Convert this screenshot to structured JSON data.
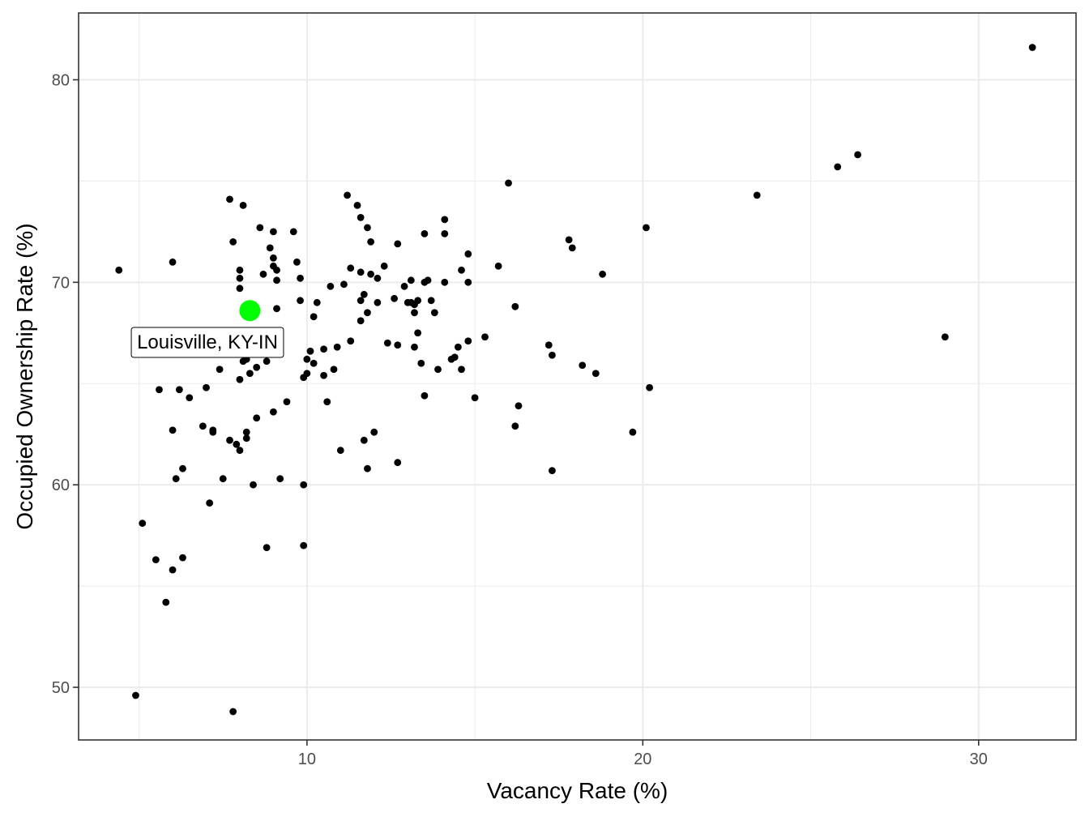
{
  "chart_data": {
    "type": "scatter",
    "title": "",
    "xlabel": "Vacancy Rate (%)",
    "ylabel": "Occupied Ownership Rate (%)",
    "xlim": [
      3.2,
      32.9
    ],
    "ylim": [
      47.4,
      83.3
    ],
    "x_ticks": [
      10,
      20,
      30
    ],
    "y_ticks": [
      50,
      60,
      70,
      80
    ],
    "x_minor": [
      5,
      15,
      25
    ],
    "y_minor": [
      55,
      65,
      75
    ],
    "grid": true,
    "legend": "none",
    "colors": {
      "point": "#000000",
      "highlight": "#00ff00",
      "grid": "#ebebeb",
      "panel_border": "#333333"
    },
    "highlight": {
      "x": 8.3,
      "y": 68.6,
      "label": "Louisville, KY-IN"
    },
    "points": [
      [
        4.4,
        70.6
      ],
      [
        4.9,
        49.6
      ],
      [
        5.1,
        58.1
      ],
      [
        5.5,
        56.3
      ],
      [
        5.6,
        64.7
      ],
      [
        5.8,
        54.2
      ],
      [
        6.0,
        71.0
      ],
      [
        6.0,
        62.7
      ],
      [
        6.0,
        55.8
      ],
      [
        6.1,
        60.3
      ],
      [
        6.2,
        64.7
      ],
      [
        6.3,
        56.4
      ],
      [
        6.3,
        60.8
      ],
      [
        6.5,
        64.3
      ],
      [
        6.9,
        62.9
      ],
      [
        7.0,
        64.8
      ],
      [
        7.1,
        59.1
      ],
      [
        7.2,
        62.6
      ],
      [
        7.2,
        62.7
      ],
      [
        7.4,
        65.7
      ],
      [
        7.5,
        60.3
      ],
      [
        7.7,
        62.2
      ],
      [
        7.7,
        74.1
      ],
      [
        7.8,
        48.8
      ],
      [
        7.8,
        72.0
      ],
      [
        7.9,
        62.0
      ],
      [
        8.0,
        69.7
      ],
      [
        8.0,
        70.2
      ],
      [
        8.0,
        70.6
      ],
      [
        8.0,
        61.7
      ],
      [
        8.0,
        65.2
      ],
      [
        8.1,
        73.8
      ],
      [
        8.1,
        66.1
      ],
      [
        8.2,
        66.2
      ],
      [
        8.2,
        62.6
      ],
      [
        8.2,
        62.3
      ],
      [
        8.3,
        65.5
      ],
      [
        8.4,
        60.0
      ],
      [
        8.5,
        65.8
      ],
      [
        8.5,
        63.3
      ],
      [
        8.6,
        72.7
      ],
      [
        8.7,
        70.4
      ],
      [
        8.8,
        56.9
      ],
      [
        8.8,
        66.1
      ],
      [
        8.9,
        71.7
      ],
      [
        9.0,
        72.5
      ],
      [
        9.0,
        71.2
      ],
      [
        9.0,
        70.8
      ],
      [
        9.0,
        63.6
      ],
      [
        9.1,
        68.7
      ],
      [
        9.1,
        70.6
      ],
      [
        9.1,
        70.1
      ],
      [
        9.2,
        60.3
      ],
      [
        9.4,
        64.1
      ],
      [
        9.6,
        72.5
      ],
      [
        9.7,
        71.0
      ],
      [
        9.8,
        70.2
      ],
      [
        9.8,
        69.1
      ],
      [
        9.9,
        65.3
      ],
      [
        9.9,
        57.0
      ],
      [
        9.9,
        60.0
      ],
      [
        10.0,
        66.2
      ],
      [
        10.0,
        65.5
      ],
      [
        10.1,
        66.6
      ],
      [
        10.2,
        66.0
      ],
      [
        10.2,
        68.3
      ],
      [
        10.3,
        69.0
      ],
      [
        10.5,
        66.7
      ],
      [
        10.5,
        65.4
      ],
      [
        10.6,
        64.1
      ],
      [
        10.7,
        69.8
      ],
      [
        10.8,
        65.7
      ],
      [
        10.9,
        66.8
      ],
      [
        11.0,
        61.7
      ],
      [
        11.1,
        69.9
      ],
      [
        11.2,
        74.3
      ],
      [
        11.3,
        70.7
      ],
      [
        11.3,
        67.1
      ],
      [
        11.5,
        73.8
      ],
      [
        11.6,
        73.2
      ],
      [
        11.6,
        69.1
      ],
      [
        11.6,
        68.1
      ],
      [
        11.6,
        70.5
      ],
      [
        11.7,
        69.4
      ],
      [
        11.7,
        62.2
      ],
      [
        11.8,
        72.7
      ],
      [
        11.8,
        68.5
      ],
      [
        11.8,
        60.8
      ],
      [
        11.9,
        72.0
      ],
      [
        11.9,
        70.4
      ],
      [
        12.0,
        62.6
      ],
      [
        12.1,
        70.2
      ],
      [
        12.1,
        69.0
      ],
      [
        12.3,
        70.8
      ],
      [
        12.4,
        67.0
      ],
      [
        12.6,
        69.2
      ],
      [
        12.7,
        71.9
      ],
      [
        12.7,
        66.9
      ],
      [
        12.7,
        61.1
      ],
      [
        12.9,
        69.8
      ],
      [
        13.0,
        69.0
      ],
      [
        13.1,
        70.1
      ],
      [
        13.1,
        69.0
      ],
      [
        13.2,
        68.5
      ],
      [
        13.2,
        68.9
      ],
      [
        13.2,
        66.8
      ],
      [
        13.3,
        67.5
      ],
      [
        13.3,
        69.1
      ],
      [
        13.4,
        66.0
      ],
      [
        13.5,
        72.4
      ],
      [
        13.5,
        70.0
      ],
      [
        13.5,
        64.4
      ],
      [
        13.6,
        70.1
      ],
      [
        13.7,
        69.1
      ],
      [
        13.8,
        68.5
      ],
      [
        13.9,
        65.7
      ],
      [
        14.1,
        70.0
      ],
      [
        14.1,
        73.1
      ],
      [
        14.1,
        72.4
      ],
      [
        14.3,
        66.2
      ],
      [
        14.4,
        66.3
      ],
      [
        14.5,
        66.8
      ],
      [
        14.6,
        70.6
      ],
      [
        14.6,
        65.7
      ],
      [
        14.8,
        67.1
      ],
      [
        14.8,
        71.4
      ],
      [
        14.8,
        70.0
      ],
      [
        15.0,
        64.3
      ],
      [
        15.3,
        67.3
      ],
      [
        15.7,
        70.8
      ],
      [
        16.0,
        74.9
      ],
      [
        16.2,
        68.8
      ],
      [
        16.2,
        62.9
      ],
      [
        16.3,
        63.9
      ],
      [
        17.2,
        66.9
      ],
      [
        17.3,
        66.4
      ],
      [
        17.3,
        60.7
      ],
      [
        17.8,
        72.1
      ],
      [
        17.9,
        71.7
      ],
      [
        18.2,
        65.9
      ],
      [
        18.6,
        65.5
      ],
      [
        18.8,
        70.4
      ],
      [
        19.7,
        62.6
      ],
      [
        20.1,
        72.7
      ],
      [
        20.2,
        64.8
      ],
      [
        23.4,
        74.3
      ],
      [
        25.8,
        75.7
      ],
      [
        26.4,
        76.3
      ],
      [
        29.0,
        67.3
      ],
      [
        31.6,
        81.6
      ]
    ]
  }
}
